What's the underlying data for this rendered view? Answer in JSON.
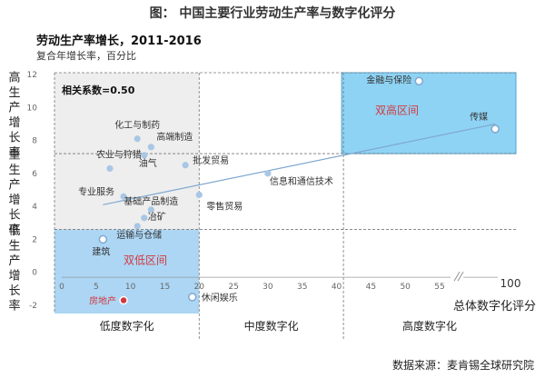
{
  "figure_title": "图：  中国主要行业劳动生产率与数字化评分",
  "source": "数据来源：麦肯锡全球研究院",
  "chart_data": {
    "type": "scatter",
    "title": "劳动生产率增长，2011-2016",
    "subtitle": "复合年增长率，百分比",
    "xlabel": "总体数字化评分",
    "ylabel": "",
    "xlim": [
      0,
      100
    ],
    "ylim": [
      -2,
      12
    ],
    "x_ticks": [
      "0",
      "5",
      "10",
      "15",
      "20",
      "25",
      "30",
      "35",
      "40",
      "45",
      "50",
      "55"
    ],
    "x_tick_values": [
      0,
      5,
      10,
      15,
      20,
      25,
      30,
      35,
      40,
      45,
      50,
      55
    ],
    "x_end_label": "100",
    "y_ticks": [
      "-2",
      "0",
      "2",
      "4",
      "6",
      "8",
      "10",
      "12"
    ],
    "y_tick_values": [
      -2,
      0,
      2,
      4,
      6,
      8,
      10,
      12
    ],
    "correlation_label": "相关系数=0.50",
    "points": [
      {
        "label": "金融与保险",
        "x": 52,
        "y": 11.6,
        "style": "hollow"
      },
      {
        "label": "传媒",
        "x": 98,
        "y": 8.7,
        "style": "hollow"
      },
      {
        "label": "化工与制药",
        "x": 11,
        "y": 8.1,
        "style": "filled"
      },
      {
        "label": "高端制造",
        "x": 13,
        "y": 7.6,
        "style": "filled"
      },
      {
        "label": "农业与狩猎",
        "x": 7,
        "y": 6.3,
        "style": "filled"
      },
      {
        "label": "油气",
        "x": 12,
        "y": 7.1,
        "style": "filled"
      },
      {
        "label": "批发贸易",
        "x": 18,
        "y": 6.5,
        "style": "filled"
      },
      {
        "label": "信息和通信技术",
        "x": 30,
        "y": 6.0,
        "style": "filled"
      },
      {
        "label": "专业服务",
        "x": 9,
        "y": 4.6,
        "style": "filled"
      },
      {
        "label": "零售贸易",
        "x": 20,
        "y": 4.7,
        "style": "filled"
      },
      {
        "label": "基础产品制造",
        "x": 13,
        "y": 3.8,
        "style": "filled"
      },
      {
        "label": "冶矿",
        "x": 12,
        "y": 3.3,
        "style": "filled"
      },
      {
        "label": "运输与仓储",
        "x": 11,
        "y": 2.8,
        "style": "filled"
      },
      {
        "label": "建筑",
        "x": 6,
        "y": 2.0,
        "style": "hollow"
      },
      {
        "label": "房地产",
        "x": 9,
        "y": -1.7,
        "style": "red"
      },
      {
        "label": "休闲娱乐",
        "x": 19,
        "y": -1.5,
        "style": "hollow"
      }
    ],
    "trendline": {
      "x": [
        6,
        98
      ],
      "y": [
        4.1,
        9.0
      ]
    },
    "zones": {
      "high_high": "双高区间",
      "low_low": "双低区间"
    },
    "y_band_labels": [
      "高生产增长率",
      "重生产增长率",
      "低生产增长率"
    ],
    "x_band_labels": [
      "低度数字化",
      "中度数字化",
      "高度数字化"
    ],
    "colors": {
      "point": "#a9c7e4",
      "point_stroke": "#7fa8d0",
      "highlight_zone": "#8fd3f4",
      "low_zone": "#9dcff2",
      "gray_zone": "#eeeeee",
      "red_text": "#d4383f",
      "trend": "#7fa8d0"
    }
  }
}
